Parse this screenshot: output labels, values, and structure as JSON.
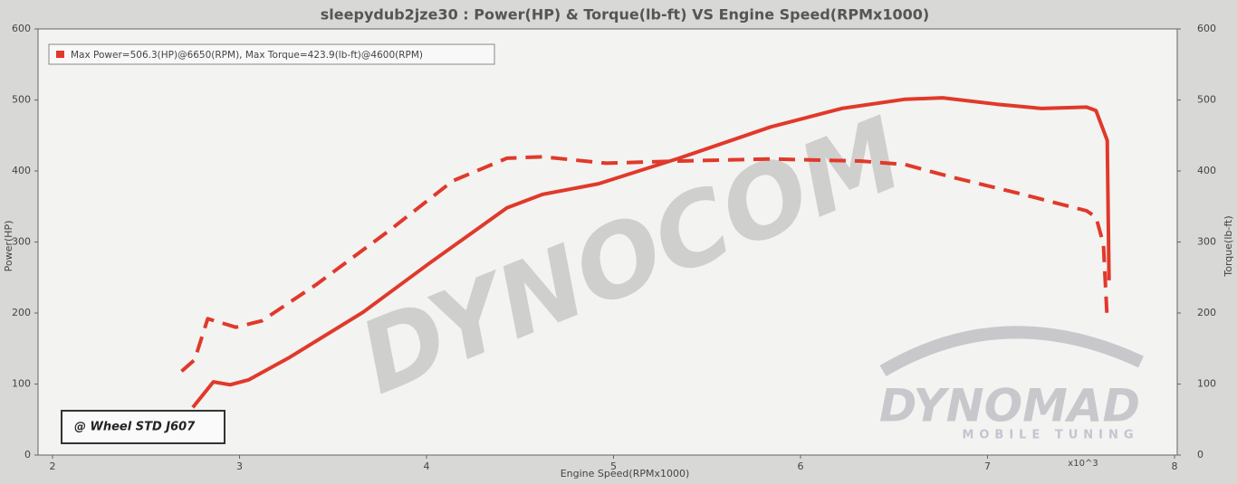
{
  "chart_data": {
    "type": "line",
    "title": "sleepydub2jze30 : Power(HP) & Torque(lb-ft) VS Engine Speed(RPMx1000)",
    "legend": "Max Power=506.3(HP)@6650(RPM), Max Torque=423.9(lb-ft)@4600(RPM)",
    "xlabel": "Engine Speed(RPMx1000)",
    "ylabel": "Power(HP)",
    "y2label": "Torque(lb-ft)",
    "x_multiplier": "x10^3",
    "annotation": "@ Wheel STD J607",
    "watermarks": [
      "DYNOCOM",
      "DYNOMAD",
      "MOBILE TUNING"
    ],
    "xlim": [
      2,
      8
    ],
    "xticks": [
      2,
      3,
      4,
      5,
      6,
      7,
      8
    ],
    "ylim": [
      0,
      600
    ],
    "yticks": [
      0,
      100,
      200,
      300,
      400,
      500,
      600
    ],
    "y2lim": [
      0,
      600
    ],
    "y2ticks": [
      0,
      100,
      200,
      300,
      400,
      500,
      600
    ],
    "series": [
      {
        "color": "#e0392b",
        "style": "solid",
        "x": [
          2.75,
          2.86,
          2.95,
          3.05,
          3.27,
          3.66,
          4.02,
          4.43,
          4.62,
          4.92,
          5.35,
          5.84,
          6.22,
          6.56,
          6.76,
          7.05,
          7.29,
          7.53,
          7.58,
          7.64,
          7.65
        ],
        "values": [
          67,
          103,
          99,
          106,
          138,
          201,
          271,
          348,
          367,
          382,
          418,
          462,
          488,
          501,
          503,
          494,
          488,
          490,
          485,
          443,
          246
        ]
      },
      {
        "color": "#e0392b",
        "style": "dashed",
        "axis": "y2",
        "x": [
          2.69,
          2.76,
          2.83,
          2.98,
          3.12,
          3.41,
          3.8,
          4.14,
          4.43,
          4.62,
          4.96,
          5.35,
          5.84,
          6.32,
          6.56,
          6.8,
          7.19,
          7.53,
          7.58,
          7.62,
          7.64
        ],
        "values": [
          118,
          134,
          192,
          180,
          189,
          240,
          316,
          386,
          418,
          420,
          411,
          414,
          417,
          414,
          409,
          392,
          367,
          344,
          335,
          297,
          189
        ]
      }
    ]
  }
}
